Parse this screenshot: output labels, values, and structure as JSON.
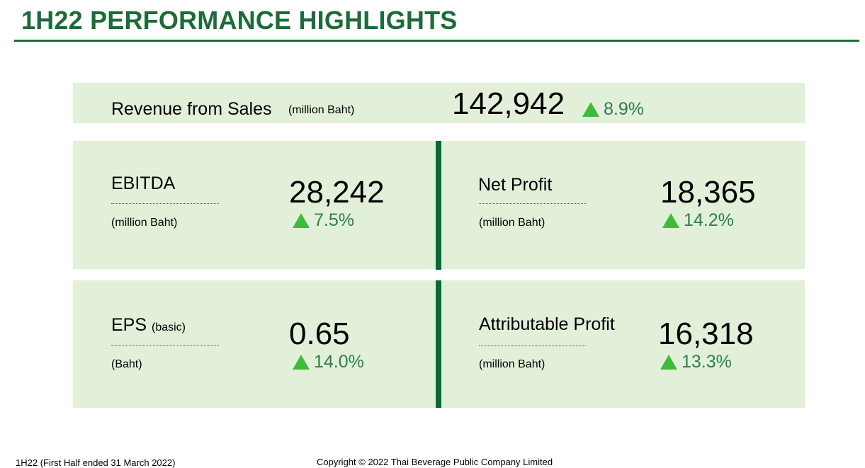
{
  "title": "1H22 PERFORMANCE HIGHLIGHTS",
  "revenue": {
    "label": "Revenue from Sales",
    "unit": "(million Baht)",
    "value": "142,942",
    "change": "8.9%"
  },
  "ebitda": {
    "label": "EBITDA",
    "unit": "(million Baht)",
    "value": "28,242",
    "change": "7.5%"
  },
  "net_profit": {
    "label": "Net Profit",
    "unit": "(million Baht)",
    "value": "18,365",
    "change": "14.2%"
  },
  "eps": {
    "label": "EPS",
    "qualifier": "(basic)",
    "unit": "(Baht)",
    "value": "0.65",
    "change": "14.0%"
  },
  "attributable_profit": {
    "label": "Attributable Profit",
    "unit": "(million Baht)",
    "value": "16,318",
    "change": "13.3%"
  },
  "footer": {
    "period_note": "1H22 (First Half ended 31 March 2022)",
    "copyright": "Copyright © 2022 Thai Beverage Public Company Limited"
  },
  "colors": {
    "title_green": "#1e6b3a",
    "panel_bg": "#e2f0d9",
    "divider_green": "#046a38",
    "up_arrow": "#3dbb3d",
    "change_text": "#2e7d4f"
  },
  "icons": {
    "change_indicator": "up-triangle-icon"
  }
}
